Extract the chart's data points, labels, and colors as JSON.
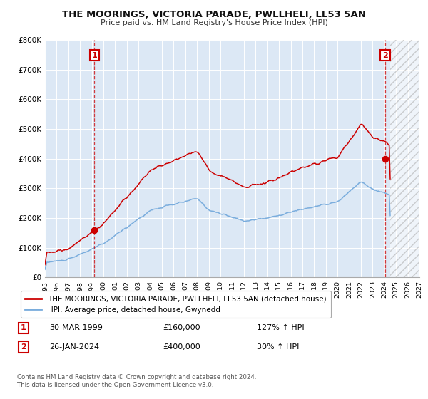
{
  "title1": "THE MOORINGS, VICTORIA PARADE, PWLLHELI, LL53 5AN",
  "title2": "Price paid vs. HM Land Registry's House Price Index (HPI)",
  "legend_line1": "THE MOORINGS, VICTORIA PARADE, PWLLHELI, LL53 5AN (detached house)",
  "legend_line2": "HPI: Average price, detached house, Gwynedd",
  "sale1_date": "30-MAR-1999",
  "sale1_price": "£160,000",
  "sale1_hpi": "127% ↑ HPI",
  "sale1_x": 1999.22,
  "sale1_y": 160000,
  "sale2_date": "26-JAN-2024",
  "sale2_price": "£400,000",
  "sale2_hpi": "30% ↑ HPI",
  "sale2_x": 2024.07,
  "sale2_y": 400000,
  "xmin": 1995,
  "xmax": 2027,
  "ymin": 0,
  "ymax": 800000,
  "yticks": [
    0,
    100000,
    200000,
    300000,
    400000,
    500000,
    600000,
    700000,
    800000
  ],
  "ytick_labels": [
    "£0",
    "£100K",
    "£200K",
    "£300K",
    "£400K",
    "£500K",
    "£600K",
    "£700K",
    "£800K"
  ],
  "red_color": "#cc0000",
  "blue_color": "#7aaddd",
  "hatch_start": 2024.5,
  "footnote": "Contains HM Land Registry data © Crown copyright and database right 2024.\nThis data is licensed under the Open Government Licence v3.0.",
  "background_color": "#dce8f5",
  "fig_bg": "#ffffff"
}
